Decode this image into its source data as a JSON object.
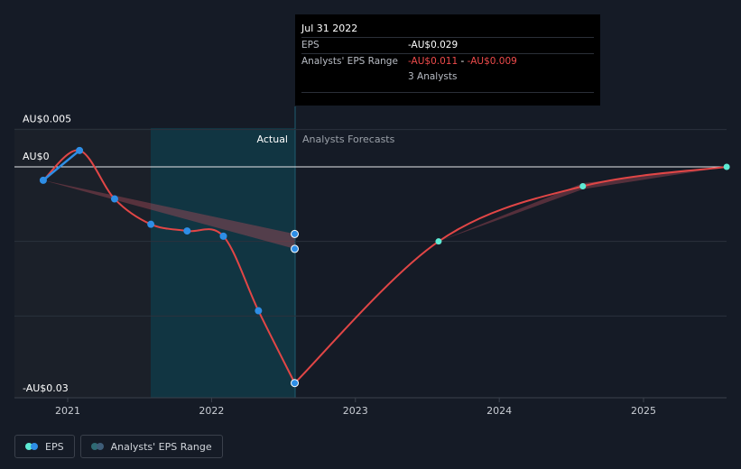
{
  "tooltip": {
    "date": "Jul 31 2022",
    "eps_label": "EPS",
    "eps_value": "-AU$0.029",
    "range_label": "Analysts' EPS Range",
    "range_low": "-AU$0.011",
    "range_sep": " - ",
    "range_high": "-AU$0.009",
    "analysts": "3 Analysts"
  },
  "labels": {
    "actual": "Actual",
    "forecast": "Analysts Forecasts"
  },
  "legend": {
    "eps": "EPS",
    "range": "Analysts' EPS Range"
  },
  "colors": {
    "background": "#151b26",
    "past_shade": "#1b2029",
    "forecast_shade": "#113a48",
    "eps_positive": "#2e8ee6",
    "eps_negative": "#e14646",
    "forecast_point": "#5eead4",
    "range_band": "#a34a56"
  },
  "chart_data": {
    "type": "line",
    "y_tick_labels": [
      "AU$0.005",
      "AU$0",
      "-AU$0.03"
    ],
    "x_tick_labels": [
      "2021",
      "2022",
      "2023",
      "2024",
      "2025"
    ],
    "ylim": [
      -0.03,
      0.005
    ],
    "grid": true,
    "legend_position": "bottom-left",
    "series": [
      {
        "name": "EPS",
        "kind": "actual",
        "x": [
          "2020-10-31",
          "2021-01-31",
          "2021-04-30",
          "2021-07-31",
          "2021-10-31",
          "2022-01-31",
          "2022-04-30",
          "2022-07-31"
        ],
        "values": [
          -0.0018,
          0.0022,
          -0.0043,
          -0.0077,
          -0.0086,
          -0.0093,
          -0.0193,
          -0.029
        ]
      },
      {
        "name": "EPS",
        "kind": "forecast",
        "x": [
          "2022-07-31",
          "2023-07-31",
          "2024-07-31",
          "2025-07-31"
        ],
        "values": [
          -0.029,
          -0.01,
          -0.0026,
          0.0
        ]
      },
      {
        "name": "Analysts' EPS Range",
        "kind": "range",
        "x": [
          "2020-10-31",
          "2022-07-31"
        ],
        "low": [
          -0.0018,
          -0.011
        ],
        "high": [
          -0.0018,
          -0.009
        ]
      },
      {
        "name": "Analysts' EPS Range",
        "kind": "range",
        "x": [
          "2023-07-31",
          "2024-07-31",
          "2025-07-31"
        ],
        "low": [
          -0.01,
          -0.003,
          0.0
        ],
        "high": [
          -0.01,
          -0.0022,
          0.0
        ]
      }
    ]
  }
}
